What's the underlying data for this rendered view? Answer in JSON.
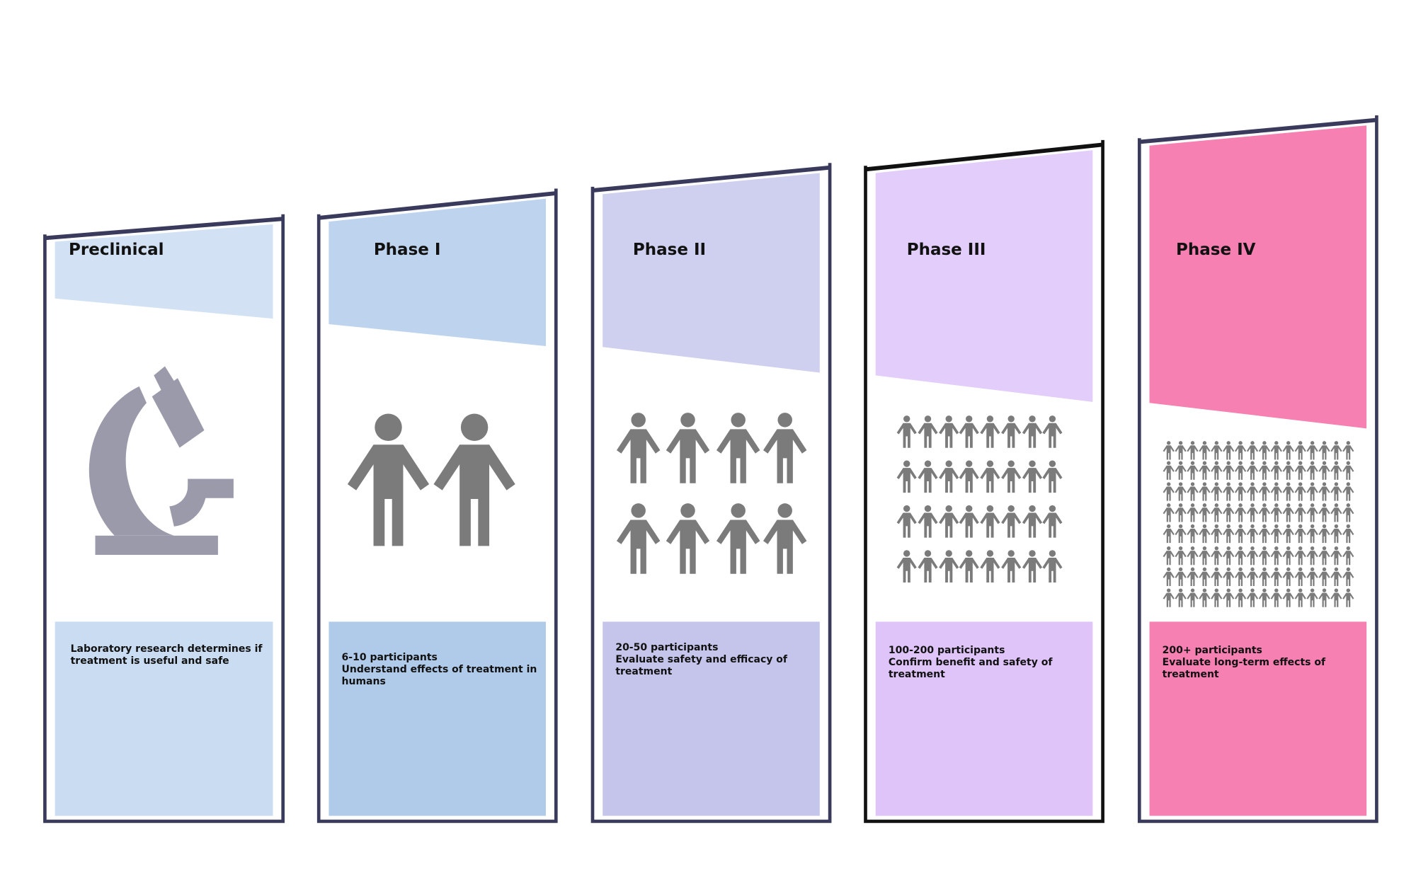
{
  "phases": [
    {
      "title": "Preclinical",
      "icon": "microscope-icon",
      "participants": "",
      "description": [
        "Laboratory research determines if",
        "treatment is useful and safe"
      ],
      "colors": {
        "header": "#d2e2f4",
        "body": "#c9dcf1",
        "frame": "#3a3a5c"
      }
    },
    {
      "title": "Phase I",
      "icon": "two-people-icon",
      "participants": "6-10 participants",
      "description": [
        "Understand effects of treatment in humans"
      ],
      "colors": {
        "header": "#bed3ee",
        "body": "#b0cbea",
        "frame": "#3a3a5c"
      }
    },
    {
      "title": "Phase II",
      "icon": "people-group-icon",
      "participants": "20-50 participants",
      "description": [
        "Evaluate safety and efficacy of",
        "treatment"
      ],
      "colors": {
        "header": "#cfcff0",
        "body": "#c5c5ec",
        "frame": "#3a3a5c"
      }
    },
    {
      "title": "Phase III",
      "icon": "people-crowd-icon",
      "participants": "100-200 participants",
      "description": [
        "Confirm benefit and safety of treatment"
      ],
      "colors": {
        "header": "#e3cdfb",
        "body": "#dfc4fa",
        "frame": "#111111"
      }
    },
    {
      "title": "Phase IV",
      "icon": "people-population-icon",
      "participants": "200+ participants",
      "description": [
        "Evaluate long-term effects of treatment"
      ],
      "colors": {
        "header": "#f780b2",
        "body": "#f780b2",
        "frame": "#3a3a5c"
      }
    }
  ],
  "icon_colors": {
    "microscope": "#9a9aaa",
    "person": "#7b7b7b"
  }
}
